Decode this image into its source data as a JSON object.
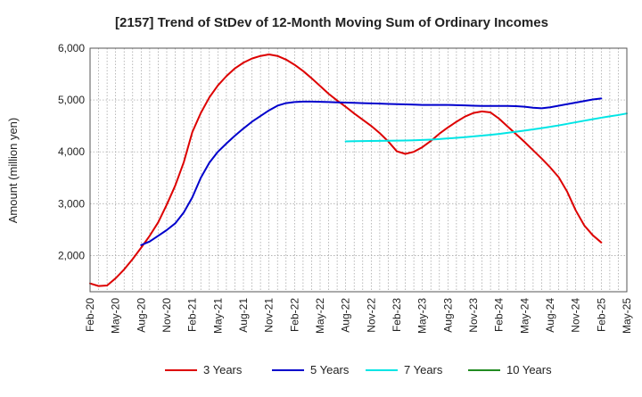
{
  "chart_data": {
    "type": "line",
    "title": "[2157]  Trend of StDev of 12-Month Moving Sum of Ordinary Incomes",
    "ylabel": "Amount (million yen)",
    "xlabel": "",
    "ylim": [
      1300,
      6000
    ],
    "yticks": [
      2000,
      3000,
      4000,
      5000,
      6000
    ],
    "ytick_labels": [
      "2,000",
      "3,000",
      "4,000",
      "5,000",
      "6,000"
    ],
    "x_ticks": [
      "Feb-20",
      "May-20",
      "Aug-20",
      "Nov-20",
      "Feb-21",
      "May-21",
      "Aug-21",
      "Nov-21",
      "Feb-22",
      "May-22",
      "Aug-22",
      "Nov-22",
      "Feb-23",
      "May-23",
      "Aug-23",
      "Nov-23",
      "Feb-24",
      "May-24",
      "Aug-24",
      "Nov-24",
      "Feb-25",
      "May-25"
    ],
    "x_start": "Feb-20",
    "x_months": 63,
    "grid": true,
    "legend_position": "bottom",
    "series": [
      {
        "name": "3 Years",
        "color": "#dd0000",
        "start_month": 0,
        "values": [
          1460,
          1410,
          1420,
          1560,
          1730,
          1930,
          2150,
          2380,
          2640,
          2980,
          3350,
          3800,
          4380,
          4750,
          5050,
          5280,
          5460,
          5610,
          5720,
          5800,
          5850,
          5880,
          5850,
          5780,
          5680,
          5560,
          5420,
          5270,
          5120,
          4990,
          4870,
          4740,
          4620,
          4500,
          4360,
          4200,
          4010,
          3960,
          4000,
          4090,
          4210,
          4350,
          4470,
          4580,
          4680,
          4750,
          4780,
          4760,
          4640,
          4490,
          4340,
          4190,
          4030,
          3870,
          3700,
          3510,
          3230,
          2870,
          2580,
          2390,
          2250
        ]
      },
      {
        "name": "5 Years",
        "color": "#0000cc",
        "start_month": 6,
        "values": [
          2200,
          2270,
          2380,
          2490,
          2620,
          2830,
          3120,
          3500,
          3790,
          4000,
          4160,
          4310,
          4450,
          4580,
          4690,
          4800,
          4890,
          4940,
          4960,
          4970,
          4970,
          4965,
          4960,
          4955,
          4950,
          4945,
          4940,
          4935,
          4930,
          4925,
          4920,
          4915,
          4910,
          4905,
          4905,
          4905,
          4905,
          4900,
          4895,
          4890,
          4885,
          4885,
          4885,
          4885,
          4880,
          4870,
          4850,
          4840,
          4860,
          4890,
          4920,
          4950,
          4980,
          5010,
          5030
        ]
      },
      {
        "name": "7 Years",
        "color": "#00e5e5",
        "start_month": 30,
        "values": [
          4200,
          4205,
          4208,
          4210,
          4212,
          4214,
          4216,
          4218,
          4222,
          4228,
          4236,
          4246,
          4258,
          4270,
          4283,
          4297,
          4312,
          4328,
          4346,
          4366,
          4388,
          4410,
          4433,
          4457,
          4482,
          4510,
          4540,
          4570,
          4600,
          4630,
          4658,
          4685,
          4710,
          4740
        ]
      },
      {
        "name": "10 Years",
        "color": "#228B22",
        "start_month": 0,
        "values": []
      }
    ]
  }
}
